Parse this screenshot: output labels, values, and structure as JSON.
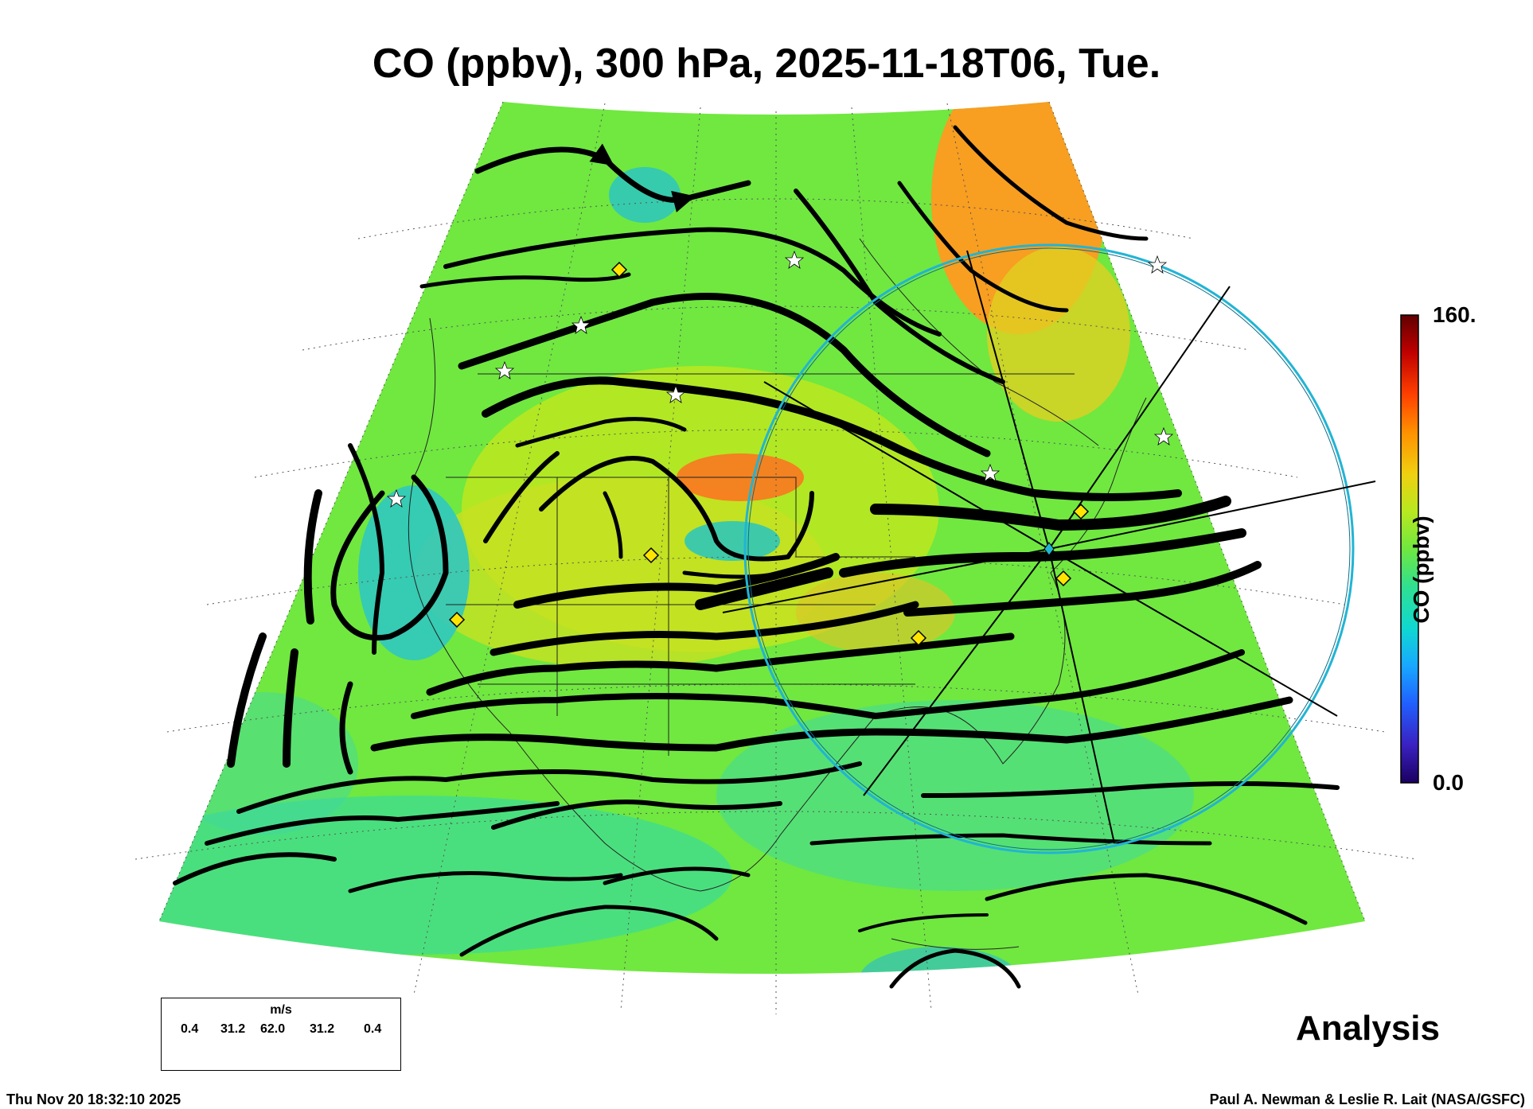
{
  "title": "CO (ppbv), 300 hPa, 2025-11-18T06, Tue.",
  "colorbar": {
    "label": "CO (ppbv)",
    "max_label": "160.",
    "min_label": "0.0",
    "min": 0.0,
    "max": 160,
    "colors": [
      "#1a0060",
      "#3a20c0",
      "#2060ff",
      "#18a8ff",
      "#10d8d0",
      "#30e090",
      "#70e840",
      "#b8e820",
      "#f0d010",
      "#ff9000",
      "#ff4000",
      "#c00000",
      "#600000"
    ]
  },
  "analysis_label": "Analysis",
  "wind_legend": {
    "unit": "m/s",
    "values": [
      "0.4",
      "31.2",
      "62.0",
      "31.2",
      "0.4"
    ]
  },
  "timestamp": "Thu Nov 20 18:32:10 2025",
  "credits": "Paul A. Newman & Leslie R. Lait (NASA/GSFC)",
  "colors": {
    "background_field": "#70e840",
    "high_co": "#ff9a20",
    "low_co": "#30d8b0",
    "streamline": "#000000",
    "range_ring": "#22b4d4",
    "marker_diamond": "#ffe400"
  }
}
